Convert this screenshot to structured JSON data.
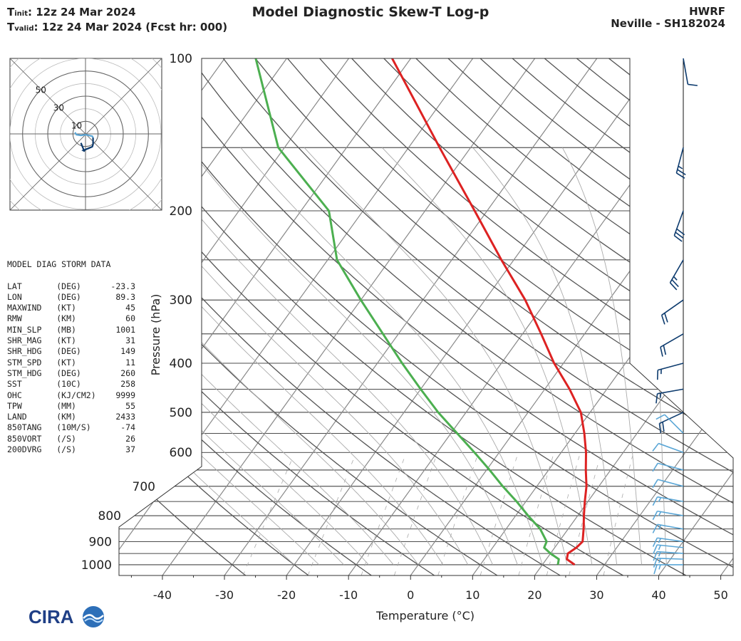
{
  "header": {
    "init_label": "init",
    "init_value": ":  12z 24 Mar 2024",
    "valid_label": "valid",
    "valid_value": ": 12z 24 Mar 2024 (Fcst hr: 000)",
    "title": "Model Diagnostic Skew-T Log-p",
    "model": "HWRF",
    "storm": "Neville - SH182024"
  },
  "storm_data": {
    "title": "MODEL DIAG STORM DATA",
    "rows": [
      [
        "LAT",
        "(DEG)",
        "-23.3"
      ],
      [
        "LON",
        "(DEG)",
        "89.3"
      ],
      [
        "MAXWIND",
        "(KT)",
        "45"
      ],
      [
        "RMW",
        "(KM)",
        "60"
      ],
      [
        "MIN_SLP",
        "(MB)",
        "1001"
      ],
      [
        "SHR_MAG",
        "(KT)",
        "31"
      ],
      [
        "SHR_HDG",
        "(DEG)",
        "149"
      ],
      [
        "STM_SPD",
        "(KT)",
        "11"
      ],
      [
        "STM_HDG",
        "(DEG)",
        "260"
      ],
      [
        "SST",
        "(10C)",
        "258"
      ],
      [
        "OHC",
        "(KJ/CM2)",
        "9999"
      ],
      [
        "TPW",
        "(MM)",
        "55"
      ],
      [
        "LAND",
        "(KM)",
        "2433"
      ],
      [
        "850TANG",
        "(10M/S)",
        "-74"
      ],
      [
        "850VORT",
        "(/S)",
        "26"
      ],
      [
        "200DVRG",
        "(/S)",
        "37"
      ]
    ]
  },
  "chart_data": {
    "type": "line",
    "title": "Model Diagnostic Skew-T Log-p",
    "xlabel": "Temperature (°C)",
    "ylabel": "Pressure (hPa)",
    "x_ticks": [
      -40,
      -30,
      -20,
      -10,
      0,
      10,
      20,
      30,
      40,
      50
    ],
    "y_ticks": [
      100,
      200,
      300,
      400,
      500,
      600,
      700,
      800,
      900,
      1000
    ],
    "pressure_range": [
      1050,
      100
    ],
    "temp_range_at_surface": [
      -47,
      52
    ],
    "temperature_color": "#dd2222",
    "dewpoint_color": "#4caf50",
    "series": [
      {
        "name": "Temperature",
        "points": [
          [
            1000,
            25.2
          ],
          [
            975,
            23.3
          ],
          [
            950,
            22.8
          ],
          [
            925,
            23.5
          ],
          [
            900,
            23.8
          ],
          [
            850,
            22.5
          ],
          [
            800,
            21.0
          ],
          [
            750,
            19.5
          ],
          [
            700,
            18.0
          ],
          [
            650,
            16.0
          ],
          [
            600,
            14.0
          ],
          [
            550,
            11.5
          ],
          [
            500,
            8.5
          ],
          [
            450,
            4.0
          ],
          [
            400,
            -1.5
          ],
          [
            350,
            -7.0
          ],
          [
            300,
            -13.5
          ],
          [
            250,
            -22.0
          ],
          [
            200,
            -32.0
          ],
          [
            150,
            -45.0
          ],
          [
            100,
            -63.0
          ]
        ]
      },
      {
        "name": "Dewpoint",
        "points": [
          [
            1000,
            22.5
          ],
          [
            975,
            22.0
          ],
          [
            950,
            20.0
          ],
          [
            925,
            18.3
          ],
          [
            900,
            18.0
          ],
          [
            850,
            15.5
          ],
          [
            800,
            12.0
          ],
          [
            750,
            8.5
          ],
          [
            700,
            4.5
          ],
          [
            650,
            0.5
          ],
          [
            600,
            -4.0
          ],
          [
            550,
            -9.0
          ],
          [
            500,
            -14.5
          ],
          [
            450,
            -20.0
          ],
          [
            400,
            -26.0
          ],
          [
            350,
            -32.5
          ],
          [
            300,
            -40.0
          ],
          [
            250,
            -48.5
          ],
          [
            200,
            -55.5
          ],
          [
            150,
            -71.0
          ],
          [
            100,
            -85.0
          ]
        ]
      }
    ],
    "winds": {
      "upper_color": "#0d3b6e",
      "lower_color": "#5aa6d6",
      "barbs": [
        {
          "p": 100,
          "dir": 170,
          "kt": 10
        },
        {
          "p": 150,
          "dir": 195,
          "kt": 25
        },
        {
          "p": 200,
          "dir": 200,
          "kt": 30
        },
        {
          "p": 250,
          "dir": 210,
          "kt": 25
        },
        {
          "p": 300,
          "dir": 235,
          "kt": 20
        },
        {
          "p": 350,
          "dir": 240,
          "kt": 20
        },
        {
          "p": 400,
          "dir": 255,
          "kt": 15
        },
        {
          "p": 450,
          "dir": 260,
          "kt": 15
        },
        {
          "p": 500,
          "dir": 245,
          "kt": 20
        },
        {
          "p": 550,
          "dir": 315,
          "kt": 10
        },
        {
          "p": 600,
          "dir": 290,
          "kt": 10
        },
        {
          "p": 650,
          "dir": 285,
          "kt": 10
        },
        {
          "p": 700,
          "dir": 285,
          "kt": 10
        },
        {
          "p": 750,
          "dir": 280,
          "kt": 15
        },
        {
          "p": 800,
          "dir": 280,
          "kt": 15
        },
        {
          "p": 850,
          "dir": 280,
          "kt": 15
        },
        {
          "p": 900,
          "dir": 278,
          "kt": 15
        },
        {
          "p": 925,
          "dir": 276,
          "kt": 15
        },
        {
          "p": 950,
          "dir": 274,
          "kt": 15
        },
        {
          "p": 975,
          "dir": 272,
          "kt": 15
        },
        {
          "p": 1000,
          "dir": 270,
          "kt": 15
        }
      ]
    },
    "hodograph": {
      "ring_labels": [
        "10",
        "30",
        "50"
      ],
      "ring_values": [
        10,
        30,
        50
      ],
      "points_lower": [
        [
          -14,
          2
        ],
        [
          -12,
          -1
        ],
        [
          -6,
          -2
        ],
        [
          0,
          -1
        ],
        [
          4,
          -2
        ],
        [
          9,
          -3
        ],
        [
          10,
          -5
        ]
      ],
      "points_upper": [
        [
          10,
          -5
        ],
        [
          10,
          -14
        ],
        [
          9,
          -17
        ],
        [
          -3,
          -22
        ],
        [
          -1,
          -23
        ],
        [
          -2,
          -22
        ],
        [
          -6,
          -12
        ]
      ]
    }
  }
}
